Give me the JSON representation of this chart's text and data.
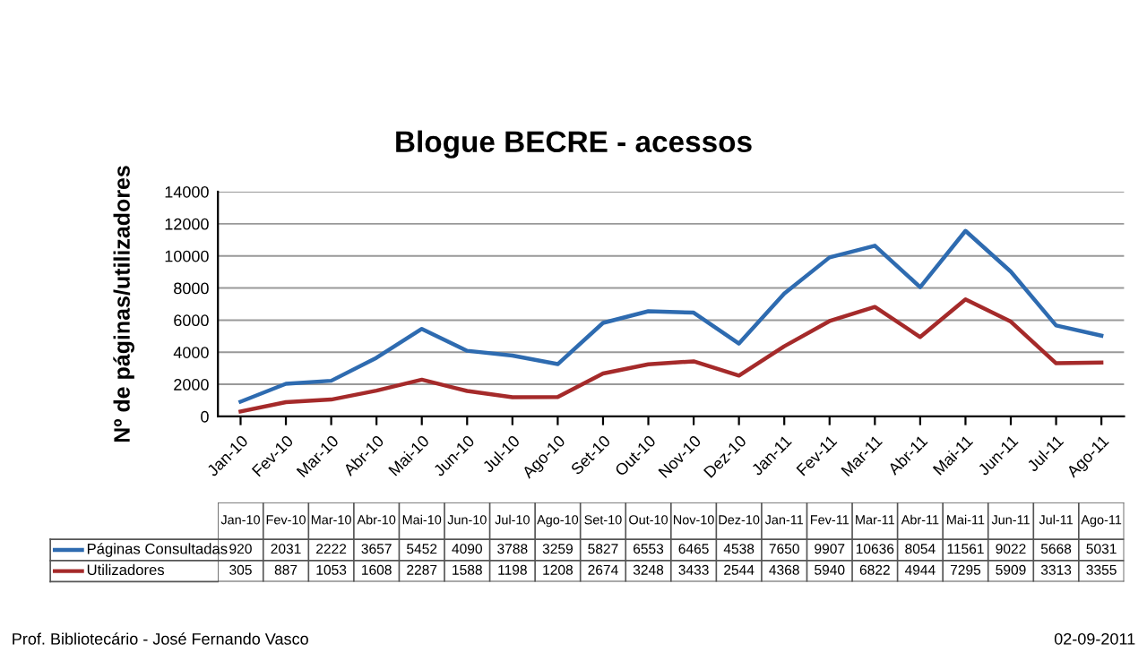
{
  "chart_data": {
    "type": "line",
    "title": "Blogue BECRE - acessos",
    "ylabel": "Nº de páginas/utilizadores",
    "categories": [
      "Jan-10",
      "Fev-10",
      "Mar-10",
      "Abr-10",
      "Mai-10",
      "Jun-10",
      "Jul-10",
      "Ago-10",
      "Set-10",
      "Out-10",
      "Nov-10",
      "Dez-10",
      "Jan-11",
      "Fev-11",
      "Mar-11",
      "Abr-11",
      "Mai-11",
      "Jun-11",
      "Jul-11",
      "Ago-11"
    ],
    "series": [
      {
        "name": "Páginas Consultadas",
        "color": "#2e6bb0",
        "values": [
          920,
          2031,
          2222,
          3657,
          5452,
          4090,
          3788,
          3259,
          5827,
          6553,
          6465,
          4538,
          7650,
          9907,
          10636,
          8054,
          11561,
          9022,
          5668,
          5031
        ]
      },
      {
        "name": "Utilizadores",
        "color": "#a52a2a",
        "values": [
          305,
          887,
          1053,
          1608,
          2287,
          1588,
          1198,
          1208,
          2674,
          3248,
          3433,
          2544,
          4368,
          5940,
          6822,
          4944,
          7295,
          5909,
          3313,
          3355
        ]
      }
    ],
    "ylim": [
      0,
      14000
    ],
    "yticks": [
      0,
      2000,
      4000,
      6000,
      8000,
      10000,
      12000,
      14000
    ],
    "grid": "y",
    "data_labels": true,
    "legend": "bottom",
    "annotations": [
      "Prof. Bibliotecário - José Fernando Vasco",
      "02-09-2011"
    ]
  }
}
